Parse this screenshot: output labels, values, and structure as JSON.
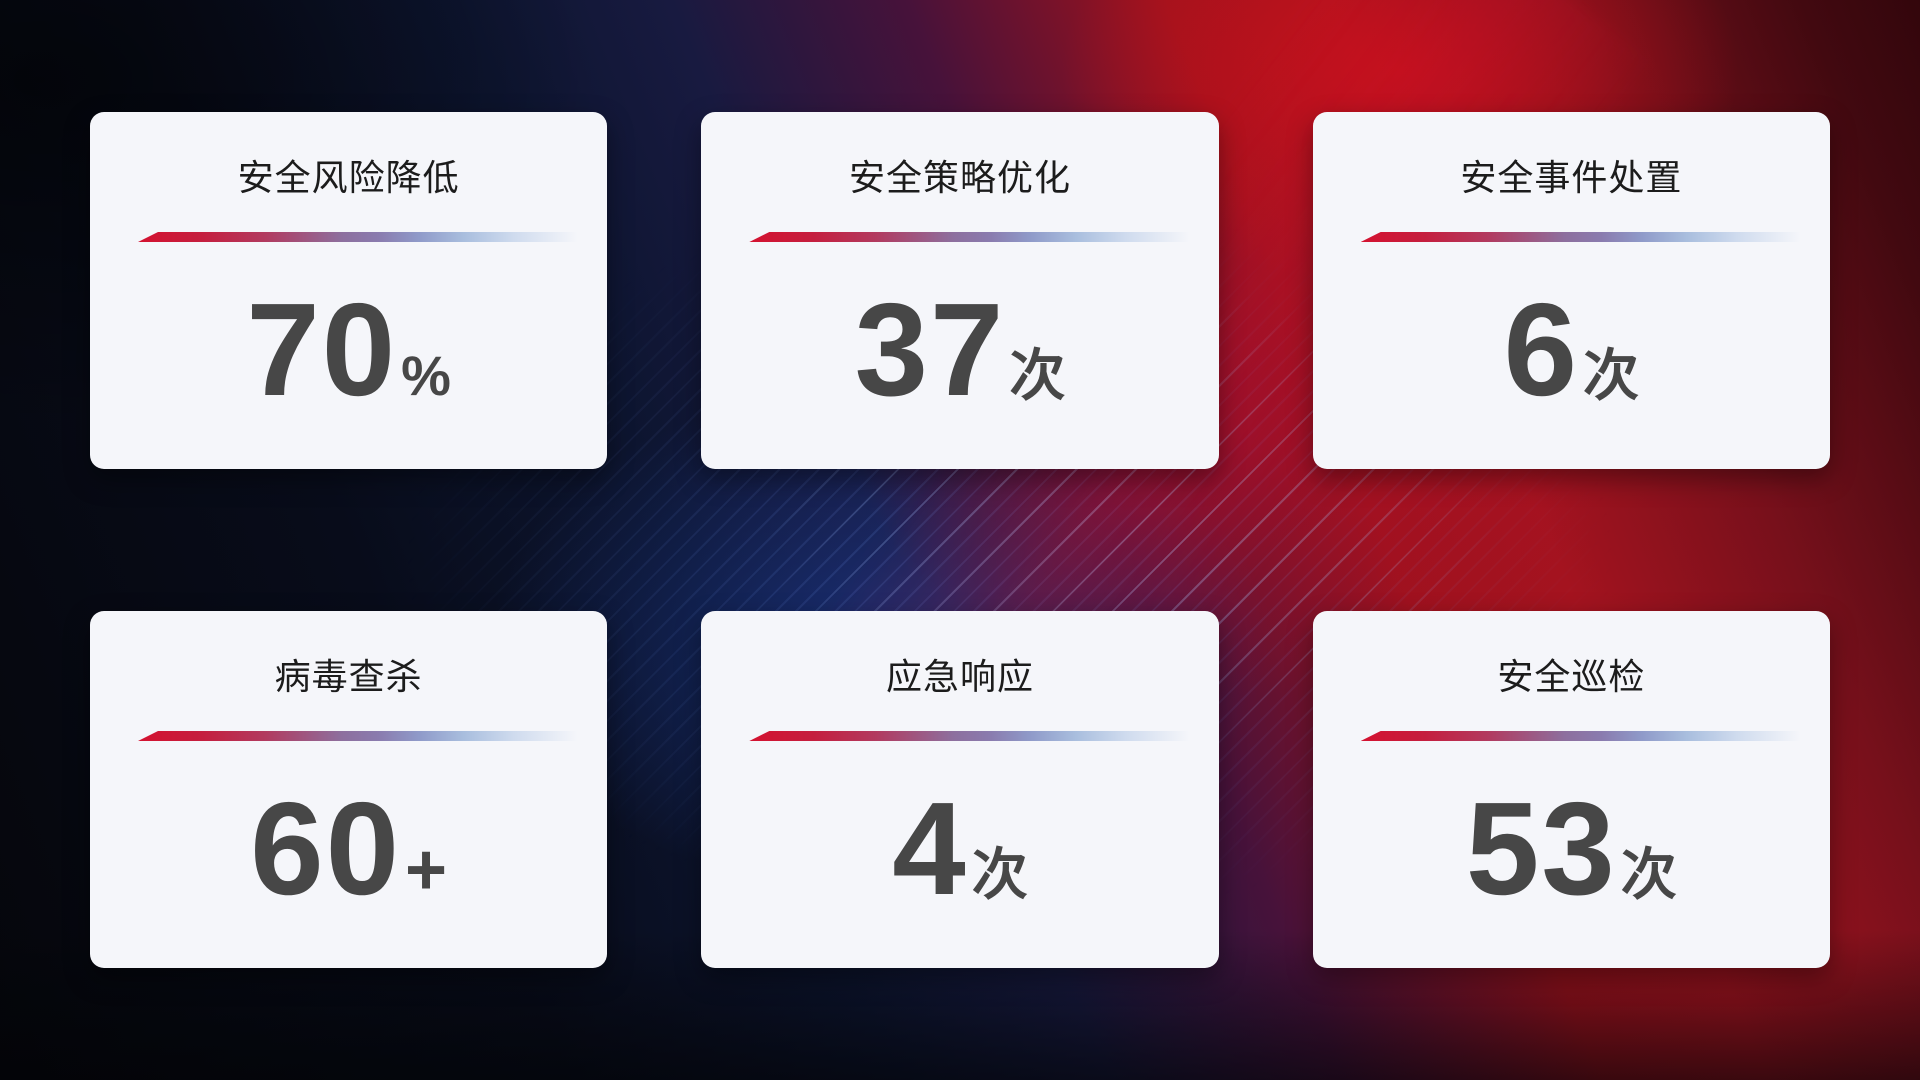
{
  "cards": [
    {
      "title": "安全风险降低",
      "value": "70",
      "unit": "%"
    },
    {
      "title": "安全策略优化",
      "value": "37",
      "unit": "次"
    },
    {
      "title": "安全事件处置",
      "value": "6",
      "unit": "次"
    },
    {
      "title": "病毒查杀",
      "value": "60",
      "unit": "+"
    },
    {
      "title": "应急响应",
      "value": "4",
      "unit": "次"
    },
    {
      "title": "安全巡检",
      "value": "53",
      "unit": "次"
    }
  ],
  "colors": {
    "card_background": "#f5f6fa",
    "title_text": "#1c1c1c",
    "value_text": "#474747",
    "divider_red": "#d41230",
    "divider_purple": "#8d6f9e",
    "divider_blue": "#a9bede",
    "background_navy": "#0a0e20",
    "background_blue_glow": "#1c3e9c",
    "background_red": "#9e121d"
  }
}
